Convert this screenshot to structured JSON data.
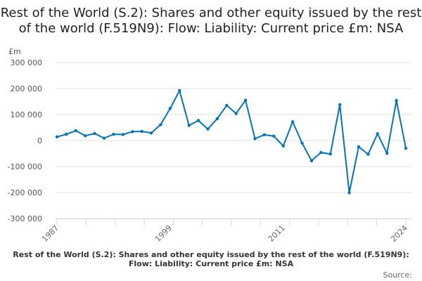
{
  "chart_data": {
    "type": "line",
    "title": "Rest of the World (S.2): Shares and other equity issued by the rest of the world (F.519N9): Flow: Liability: Current price £m: NSA",
    "ylabel": "£m",
    "xlabel": "",
    "ylim": [
      -300000,
      300000
    ],
    "yticks": [
      300000,
      200000,
      100000,
      0,
      -100000,
      -200000,
      -300000
    ],
    "ytick_labels": [
      "300 000",
      "200 000",
      "100 000",
      "0",
      "-100 000",
      "-200 000",
      "-300 000"
    ],
    "xtick_labels": [
      "1987",
      "1999",
      "2011",
      "2024"
    ],
    "grid": true,
    "color": "#0075bb",
    "x": [
      1987,
      1988,
      1989,
      1990,
      1991,
      1992,
      1993,
      1994,
      1995,
      1996,
      1997,
      1998,
      1999,
      2000,
      2001,
      2002,
      2003,
      2004,
      2005,
      2006,
      2007,
      2008,
      2009,
      2010,
      2011,
      2012,
      2013,
      2014,
      2015,
      2016,
      2017,
      2018,
      2019,
      2020,
      2021,
      2022,
      2023,
      2024
    ],
    "values": [
      14000,
      24000,
      38000,
      18000,
      27000,
      9000,
      24000,
      23000,
      34000,
      35000,
      29000,
      61000,
      123000,
      192000,
      58000,
      77000,
      44000,
      84000,
      135000,
      104000,
      155000,
      7000,
      22000,
      17000,
      -21000,
      72000,
      -10000,
      -78000,
      -46000,
      -52000,
      138000,
      -201000,
      -24000,
      -53000,
      26000,
      -49000,
      154000,
      -30000
    ]
  },
  "footer": {
    "caption": "Rest of the World (S.2): Shares and other equity issued by the rest of the world (F.519N9): Flow: Liability: Current price £m: NSA",
    "source_label": "Source:"
  }
}
